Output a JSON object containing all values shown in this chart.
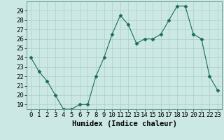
{
  "x": [
    0,
    1,
    2,
    3,
    4,
    5,
    6,
    7,
    8,
    9,
    10,
    11,
    12,
    13,
    14,
    15,
    16,
    17,
    18,
    19,
    20,
    21,
    22,
    23
  ],
  "y": [
    24,
    22.5,
    21.5,
    20,
    18.5,
    18.5,
    19,
    19,
    22,
    24,
    26.5,
    28.5,
    27.5,
    25.5,
    26,
    26,
    26.5,
    28,
    29.5,
    29.5,
    26.5,
    26,
    22,
    20.5
  ],
  "line_color": "#1a6b5a",
  "marker": "D",
  "marker_size": 2.5,
  "bg_color": "#cce8e4",
  "grid_color": "#aacfca",
  "xlabel": "Humidex (Indice chaleur)",
  "ylim": [
    18.5,
    30
  ],
  "yticks": [
    19,
    20,
    21,
    22,
    23,
    24,
    25,
    26,
    27,
    28,
    29
  ],
  "xticks": [
    0,
    1,
    2,
    3,
    4,
    5,
    6,
    7,
    8,
    9,
    10,
    11,
    12,
    13,
    14,
    15,
    16,
    17,
    18,
    19,
    20,
    21,
    22,
    23
  ],
  "font_size": 6.5,
  "xlabel_fontsize": 7.5,
  "line_width": 0.8
}
